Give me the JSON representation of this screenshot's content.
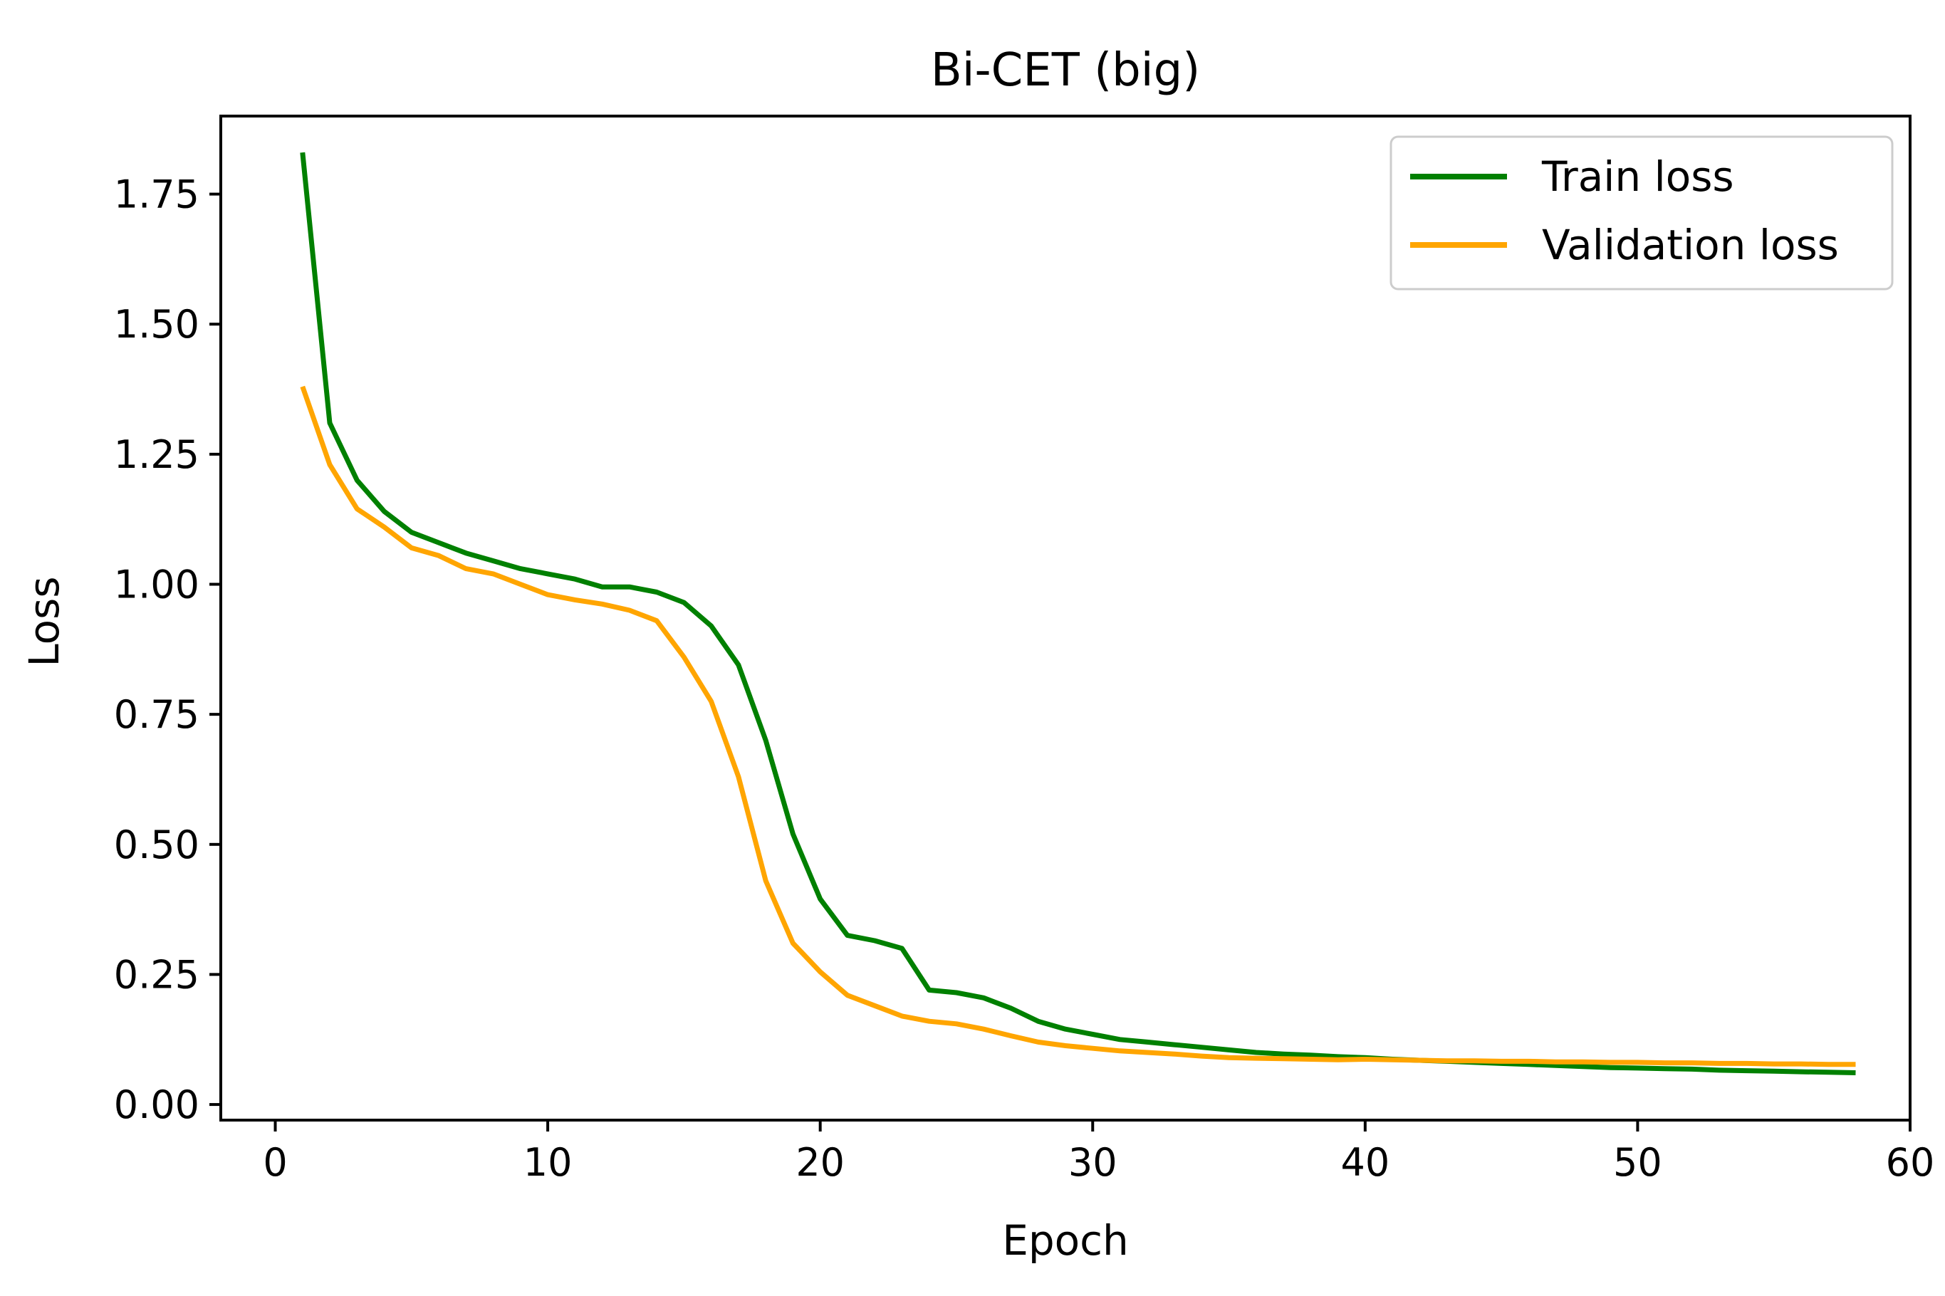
{
  "chart_data": {
    "type": "line",
    "title": "Bi-CET (big)",
    "xlabel": "Epoch",
    "ylabel": "Loss",
    "xlim": [
      -2,
      60
    ],
    "ylim": [
      -0.03,
      1.9
    ],
    "xticks": [
      0,
      10,
      20,
      30,
      40,
      50,
      60
    ],
    "xtick_labels": [
      "0",
      "10",
      "20",
      "30",
      "40",
      "50",
      "60"
    ],
    "yticks": [
      0.0,
      0.25,
      0.5,
      0.75,
      1.0,
      1.25,
      1.5,
      1.75
    ],
    "ytick_labels": [
      "0.00",
      "0.25",
      "0.50",
      "0.75",
      "1.00",
      "1.25",
      "1.50",
      "1.75"
    ],
    "grid": false,
    "legend_position": "top-right",
    "series": [
      {
        "name": "Train loss",
        "color": "#008000",
        "x": [
          1,
          2,
          3,
          4,
          5,
          6,
          7,
          8,
          9,
          10,
          11,
          12,
          13,
          14,
          15,
          16,
          17,
          18,
          19,
          20,
          21,
          22,
          23,
          24,
          25,
          26,
          27,
          28,
          29,
          30,
          31,
          32,
          33,
          34,
          35,
          36,
          37,
          38,
          39,
          40,
          41,
          42,
          43,
          44,
          45,
          46,
          47,
          48,
          49,
          50,
          51,
          52,
          53,
          54,
          55,
          56,
          57,
          58
        ],
        "values": [
          1.83,
          1.31,
          1.2,
          1.14,
          1.1,
          1.08,
          1.06,
          1.045,
          1.03,
          1.02,
          1.01,
          0.995,
          0.995,
          0.985,
          0.965,
          0.92,
          0.845,
          0.7,
          0.52,
          0.395,
          0.325,
          0.315,
          0.3,
          0.22,
          0.215,
          0.205,
          0.185,
          0.16,
          0.145,
          0.135,
          0.125,
          0.12,
          0.115,
          0.11,
          0.105,
          0.1,
          0.097,
          0.095,
          0.092,
          0.09,
          0.087,
          0.085,
          0.083,
          0.081,
          0.079,
          0.077,
          0.075,
          0.073,
          0.071,
          0.07,
          0.069,
          0.068,
          0.066,
          0.065,
          0.064,
          0.063,
          0.062,
          0.061
        ]
      },
      {
        "name": "Validation loss",
        "color": "#FFA500",
        "x": [
          1,
          2,
          3,
          4,
          5,
          6,
          7,
          8,
          9,
          10,
          11,
          12,
          13,
          14,
          15,
          16,
          17,
          18,
          19,
          20,
          21,
          22,
          23,
          24,
          25,
          26,
          27,
          28,
          29,
          30,
          31,
          32,
          33,
          34,
          35,
          36,
          37,
          38,
          39,
          40,
          41,
          42,
          43,
          44,
          45,
          46,
          47,
          48,
          49,
          50,
          51,
          52,
          53,
          54,
          55,
          56,
          57,
          58
        ],
        "values": [
          1.38,
          1.23,
          1.145,
          1.11,
          1.07,
          1.055,
          1.03,
          1.02,
          1.0,
          0.98,
          0.97,
          0.962,
          0.95,
          0.93,
          0.86,
          0.775,
          0.63,
          0.43,
          0.31,
          0.255,
          0.21,
          0.19,
          0.17,
          0.16,
          0.155,
          0.145,
          0.132,
          0.12,
          0.113,
          0.108,
          0.103,
          0.1,
          0.097,
          0.093,
          0.09,
          0.089,
          0.088,
          0.087,
          0.086,
          0.087,
          0.086,
          0.085,
          0.084,
          0.084,
          0.083,
          0.083,
          0.082,
          0.082,
          0.081,
          0.081,
          0.08,
          0.08,
          0.079,
          0.079,
          0.078,
          0.078,
          0.077,
          0.077
        ]
      }
    ]
  }
}
